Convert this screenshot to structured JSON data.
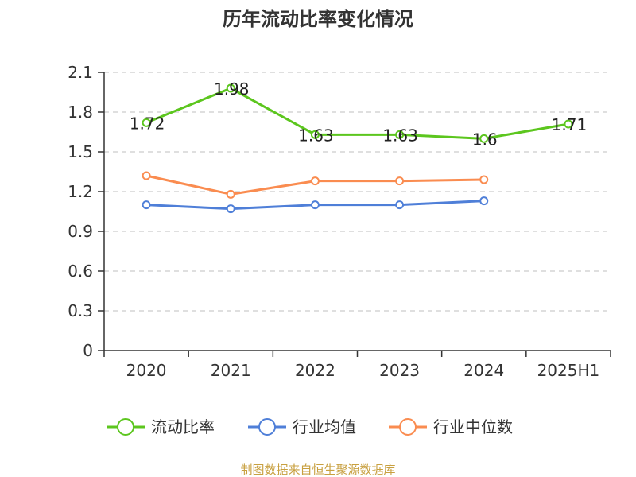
{
  "chart_data": {
    "type": "line",
    "title": "历年流动比率变化情况",
    "categories": [
      "2020",
      "2021",
      "2022",
      "2023",
      "2024",
      "2025H1"
    ],
    "y_ticks": [
      "0",
      "0.3",
      "0.6",
      "0.9",
      "1.2",
      "1.5",
      "1.8",
      "2.1"
    ],
    "ylim": [
      0,
      2.1
    ],
    "grid": true,
    "legend_position": "bottom",
    "series": [
      {
        "name": "流动比率",
        "color": "#5cc61e",
        "values": [
          1.72,
          1.98,
          1.63,
          1.63,
          1.6,
          1.71
        ],
        "labels": [
          "1.72",
          "1.98",
          "1.63",
          "1.63",
          "1.6",
          "1.71"
        ]
      },
      {
        "name": "行业均值",
        "color": "#4f7fd8",
        "values": [
          1.1,
          1.07,
          1.1,
          1.1,
          1.13,
          null
        ]
      },
      {
        "name": "行业中位数",
        "color": "#fa8c50",
        "values": [
          1.32,
          1.18,
          1.28,
          1.28,
          1.29,
          null
        ]
      }
    ],
    "source": "制图数据来自恒生聚源数据库"
  }
}
